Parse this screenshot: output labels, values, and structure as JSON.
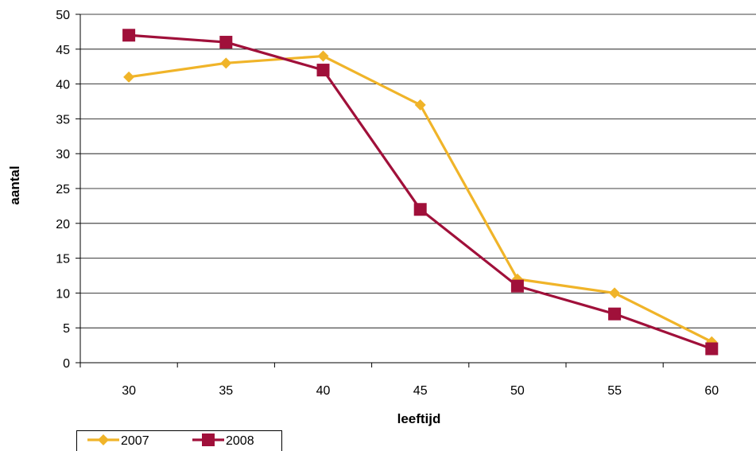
{
  "chart_data": {
    "type": "line",
    "title": "",
    "xlabel": "leeftijd",
    "ylabel": "aantal",
    "x": [
      30,
      35,
      40,
      45,
      50,
      55,
      60
    ],
    "ylim": [
      0,
      50
    ],
    "y_ticks": [
      0,
      5,
      10,
      15,
      20,
      25,
      30,
      35,
      40,
      45,
      50
    ],
    "grid": "horizontal",
    "legend_position": "bottom-left",
    "series": [
      {
        "name": "2007",
        "values": [
          41,
          43,
          44,
          37,
          12,
          10,
          3
        ],
        "color": "#f0b429",
        "marker": "diamond"
      },
      {
        "name": "2008",
        "values": [
          47,
          46,
          42,
          22,
          11,
          7,
          2
        ],
        "color": "#a0103a",
        "marker": "square"
      }
    ]
  }
}
